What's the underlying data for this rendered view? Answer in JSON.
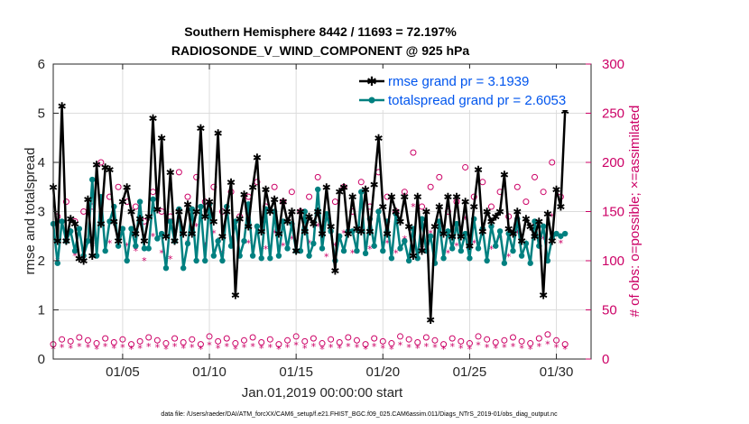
{
  "chart_data": {
    "type": "line",
    "title_line1": "Southern Hemisphere 8442 / 11693 = 72.197%",
    "title_line2": "RADIOSONDE_V_WIND_COMPONENT @ 925 hPa",
    "xlabel": "Jan.01,2019 00:00:00 start",
    "ylabel_left": "rmse and totalspread",
    "ylabel_right": "# of obs: o=possible; ×=assimilated",
    "footer": "data file: /Users/raeder/DAI/ATM_forcXX/CAM6_setup/f.e21.FHIST_BGC.f09_025.CAM6assim.011/Diags_NTrS_2019-01/obs_diag_output.nc",
    "xlim": [
      1,
      32
    ],
    "ylim_left": [
      0,
      6
    ],
    "ylim_right": [
      0,
      300
    ],
    "x_ticks": [
      5,
      10,
      15,
      20,
      25,
      30
    ],
    "x_tick_labels": [
      "01/05",
      "01/10",
      "01/15",
      "01/20",
      "01/25",
      "01/30"
    ],
    "y_ticks_left": [
      "0",
      "1",
      "2",
      "3",
      "4",
      "5",
      "6"
    ],
    "y_ticks_right": [
      "0",
      "50",
      "100",
      "150",
      "200",
      "250",
      "300"
    ],
    "colors": {
      "rmse": "#000000",
      "spread": "#008080",
      "obs": "#cc0066",
      "legend_text": "#0055ee"
    },
    "series": [
      {
        "name": "rmse grand pr = 3.1939",
        "x_start": 1.0,
        "x_step": 0.25,
        "values": [
          3.5,
          2.4,
          5.15,
          2.4,
          2.85,
          2.75,
          2.05,
          2.0,
          3.25,
          2.1,
          3.95,
          2.75,
          3.9,
          3.85,
          2.8,
          2.4,
          3.2,
          3.5,
          3.0,
          2.55,
          2.85,
          2.4,
          2.9,
          4.9,
          3.05,
          4.5,
          2.5,
          3.8,
          2.4,
          3.0,
          2.55,
          3.15,
          2.55,
          3.0,
          4.7,
          2.9,
          3.2,
          2.8,
          4.6,
          2.5,
          3.0,
          3.6,
          1.3,
          2.85,
          3.35,
          2.7,
          3.5,
          4.1,
          2.6,
          3.45,
          3.0,
          3.25,
          2.55,
          3.2,
          2.8,
          3.0,
          2.2,
          3.0,
          2.6,
          2.9,
          2.75,
          3.0,
          2.55,
          3.5,
          2.7,
          1.8,
          3.4,
          3.5,
          2.55,
          3.3,
          2.65,
          2.6,
          3.45,
          2.6,
          3.55,
          4.5,
          3.1,
          2.55,
          3.3,
          3.0,
          2.8,
          3.3,
          2.7,
          2.1,
          3.3,
          2.2,
          3.0,
          0.8,
          2.7,
          3.1,
          2.55,
          3.3,
          2.5,
          3.3,
          2.5,
          3.2,
          2.3,
          3.1,
          3.85,
          2.6,
          3.0,
          2.8,
          2.9,
          3.0,
          3.75,
          2.65,
          2.55,
          3.0,
          2.4,
          2.85,
          2.7,
          2.5,
          2.8,
          1.3,
          2.95,
          2.4,
          3.45,
          3.1,
          5.05
        ]
      },
      {
        "name": "totalspread grand pr = 2.6053",
        "x_start": 1.0,
        "x_step": 0.25,
        "values": [
          2.75,
          1.95,
          2.8,
          2.4,
          2.6,
          2.2,
          2.65,
          2.1,
          2.4,
          3.65,
          2.1,
          3.3,
          2.2,
          2.8,
          3.1,
          2.3,
          2.65,
          2.0,
          2.65,
          2.3,
          3.2,
          2.25,
          2.25,
          3.25,
          2.45,
          2.55,
          1.85,
          2.8,
          2.4,
          3.05,
          1.85,
          2.35,
          3.05,
          2.0,
          3.1,
          2.0,
          3.15,
          2.1,
          2.4,
          2.0,
          3.1,
          2.3,
          2.8,
          2.1,
          2.4,
          3.15,
          2.1,
          2.7,
          2.05,
          3.05,
          2.05,
          3.0,
          2.1,
          2.8,
          2.25,
          2.75,
          2.2,
          2.2,
          3.0,
          2.1,
          2.35,
          3.45,
          2.25,
          2.95,
          2.6,
          2.0,
          2.5,
          2.2,
          2.6,
          2.6,
          2.2,
          3.4,
          2.15,
          2.85,
          2.3,
          3.0,
          2.2,
          2.8,
          2.05,
          2.95,
          2.25,
          2.4,
          2.0,
          2.65,
          2.05,
          2.85,
          2.2,
          2.5,
          1.95,
          2.8,
          2.05,
          2.6,
          2.25,
          2.75,
          2.2,
          2.55,
          2.05,
          2.85,
          2.25,
          2.65,
          2.0,
          2.7,
          2.3,
          2.6,
          1.95,
          2.55,
          2.2,
          2.85,
          2.1,
          2.35,
          1.95,
          2.8,
          2.3,
          2.7,
          2.0,
          2.45,
          2.55,
          2.5,
          2.55
        ]
      }
    ],
    "obs_possible": {
      "x_start": 1.0,
      "x_step": 0.25,
      "values": [
        15,
        145,
        20,
        160,
        18,
        140,
        22,
        150,
        19,
        155,
        16,
        200,
        21,
        165,
        17,
        175,
        20,
        160,
        15,
        155,
        18,
        140,
        22,
        170,
        19,
        150,
        16,
        145,
        21,
        190,
        17,
        165,
        20,
        185,
        15,
        160,
        23,
        175,
        18,
        150,
        21,
        170,
        16,
        145,
        19,
        165,
        22,
        180,
        17,
        155,
        20,
        175,
        15,
        160,
        19,
        170,
        23,
        150,
        18,
        165,
        21,
        185,
        16,
        145,
        20,
        160,
        17,
        175,
        22,
        150,
        19,
        180,
        15,
        155,
        21,
        190,
        18,
        165,
        16,
        150,
        23,
        170,
        20,
        210,
        17,
        155,
        22,
        175,
        19,
        185,
        15,
        150,
        21,
        160,
        18,
        195,
        16,
        165,
        23,
        180,
        20,
        155,
        17,
        170,
        19,
        145,
        22,
        175,
        18,
        160,
        16,
        185,
        21,
        170,
        25,
        200,
        19,
        165,
        15
      ]
    },
    "obs_assimilated": {
      "x_start": 1.0,
      "x_step": 0.25,
      "values": [
        10,
        100,
        12,
        120,
        11,
        105,
        13,
        110,
        12,
        115,
        10,
        145,
        13,
        118,
        11,
        125,
        12,
        115,
        10,
        110,
        11,
        100,
        13,
        125,
        12,
        108,
        10,
        102,
        13,
        140,
        11,
        118,
        12,
        135,
        10,
        115,
        14,
        128,
        11,
        108,
        13,
        122,
        10,
        104,
        12,
        118,
        13,
        132,
        11,
        112,
        12,
        128,
        10,
        115,
        12,
        122,
        14,
        108,
        11,
        118,
        13,
        135,
        10,
        104,
        12,
        115,
        11,
        128,
        13,
        108,
        12,
        130,
        10,
        112,
        13,
        140,
        11,
        118,
        10,
        108,
        14,
        122,
        12,
        155,
        11,
        112,
        13,
        128,
        12,
        135,
        10,
        108,
        13,
        115,
        11,
        142,
        10,
        118,
        14,
        130,
        12,
        112,
        11,
        122,
        12,
        104,
        13,
        128,
        11,
        115,
        10,
        135,
        13,
        122,
        15,
        145,
        12,
        118,
        10
      ]
    }
  }
}
